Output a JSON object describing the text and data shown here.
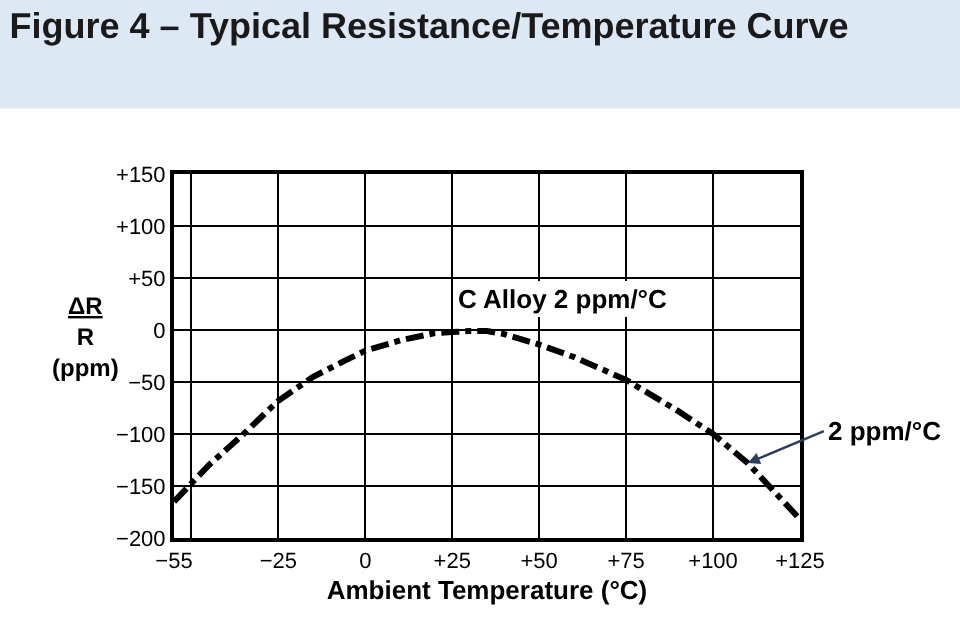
{
  "chart_data": {
    "type": "line",
    "title": "Figure 4 – Typical Resistance/Temperature Curve",
    "xlabel": "Ambient Temperature (°C)",
    "ylabel": "ΔR\nR\n(ppm)",
    "x": [
      -55,
      -45,
      -35,
      -25,
      -15,
      -5,
      0,
      10,
      20,
      25,
      30,
      35,
      40,
      50,
      60,
      75,
      90,
      100,
      110,
      125
    ],
    "series": [
      {
        "color": "#000000",
        "values": [
          -165,
          -130,
          -100,
          -68,
          -45,
          -28,
          -20,
          -10,
          -3,
          -2,
          -1,
          -1,
          -4,
          -14,
          -26,
          -48,
          -78,
          -100,
          -128,
          -182
        ]
      }
    ],
    "xlim": [
      -55,
      125
    ],
    "xticks": [
      {
        "value": -55,
        "label": "−55"
      },
      {
        "value": -50,
        "label": null
      },
      {
        "value": -25,
        "label": "−25"
      },
      0,
      {
        "value": 25,
        "label": "+25"
      },
      {
        "value": 50,
        "label": "+50"
      },
      {
        "value": 75,
        "label": "+75"
      },
      {
        "value": 100,
        "label": "+100"
      },
      {
        "value": 125,
        "label": "+125"
      }
    ],
    "ylim": [
      -200,
      150
    ],
    "yticks": [
      {
        "value": -200,
        "label": "−200"
      },
      {
        "value": -150,
        "label": "−150"
      },
      {
        "value": -100,
        "label": "−100"
      },
      {
        "value": -50,
        "label": "−50"
      },
      0,
      {
        "value": 50,
        "label": "+50"
      },
      {
        "value": 100,
        "label": "+100"
      },
      {
        "value": 150,
        "label": "+150"
      }
    ],
    "grid": true,
    "legend": false,
    "marker": "none",
    "line_style": "dashdot",
    "annotations": [
      "C Alloy 2 ppm/°C",
      {
        "text": "2 ppm/°C",
        "x": 110,
        "y": -128
      }
    ]
  }
}
